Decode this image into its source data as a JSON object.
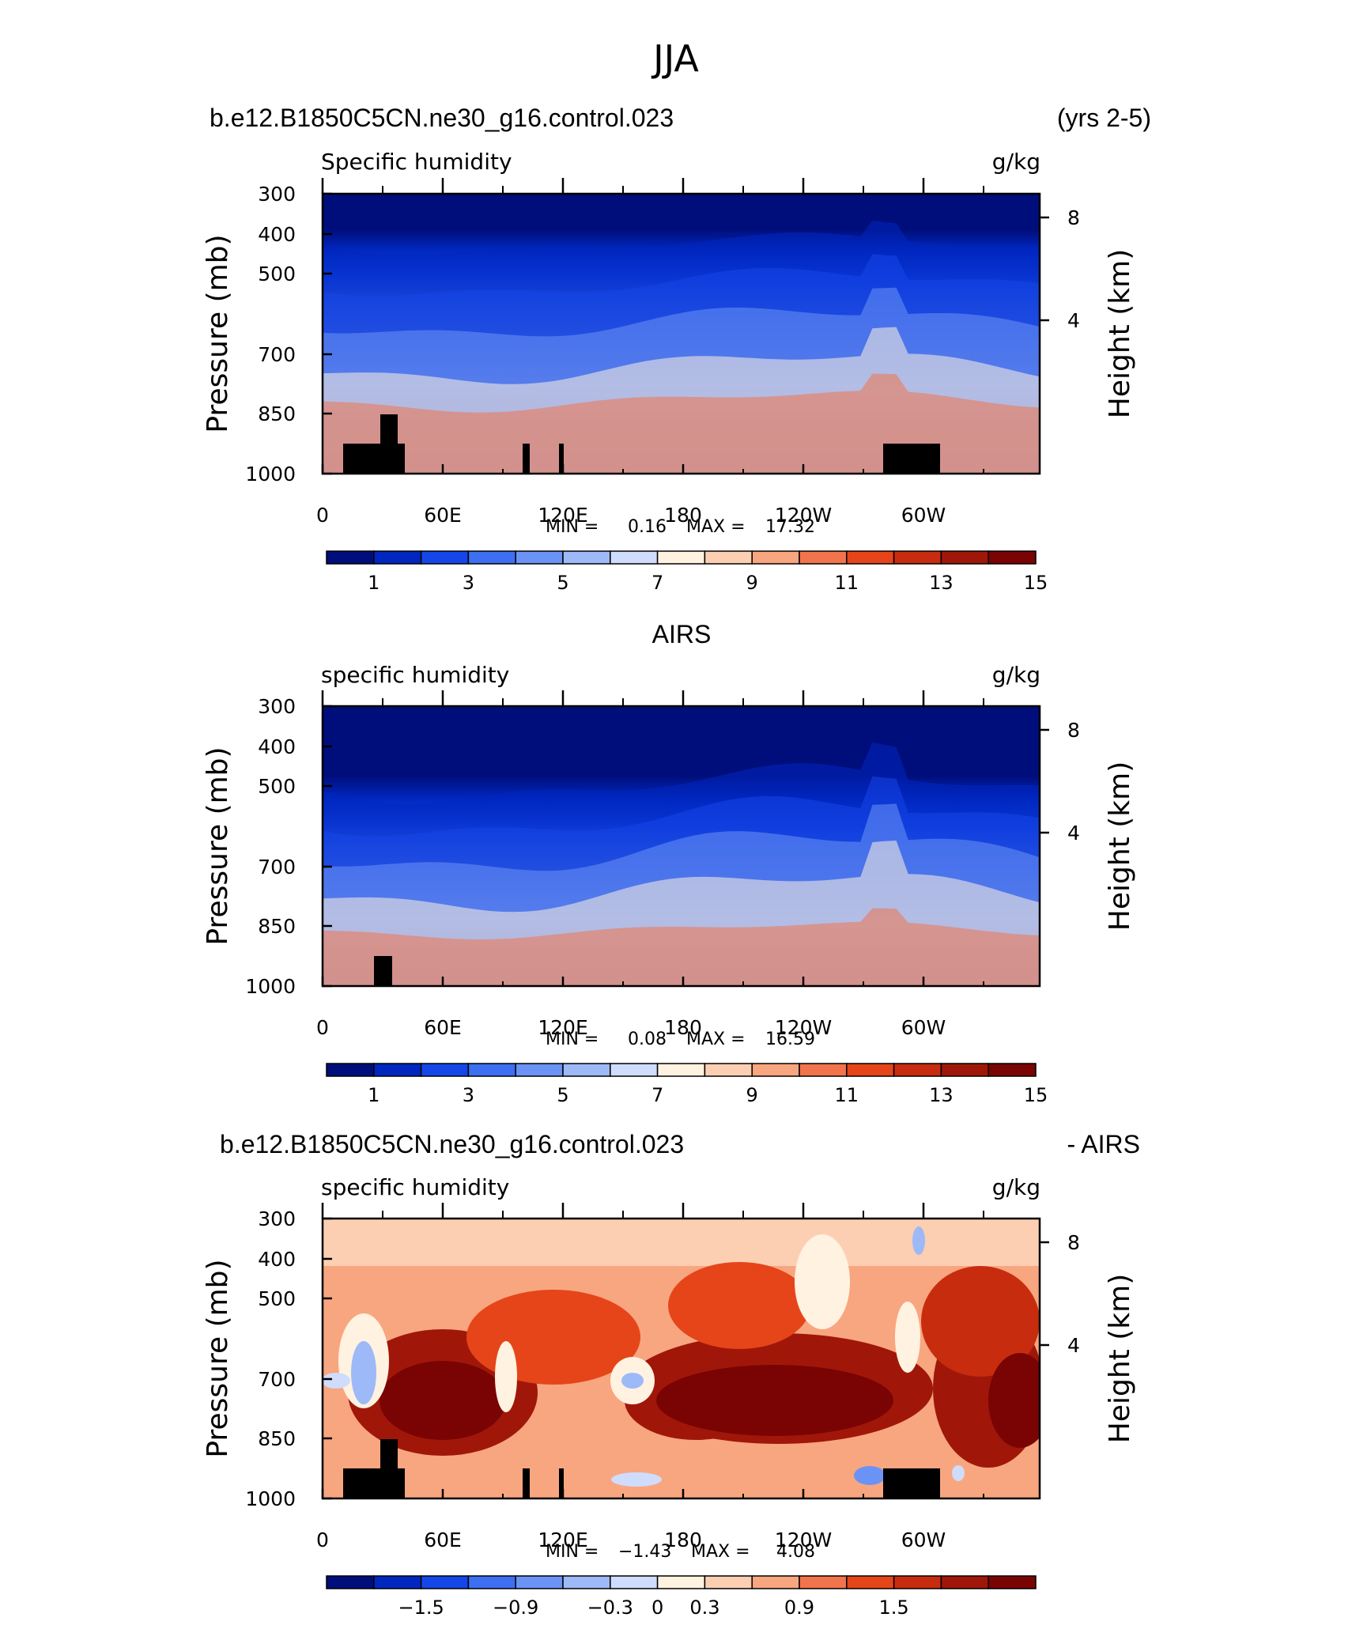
{
  "figure": {
    "title": "JJA"
  },
  "chart_data": [
    {
      "type": "heatmap",
      "label_left": "b.e12.B1850C5CN.ne30_g16.control.023",
      "label_right": "(yrs 2-5)",
      "variable": "Specific humidity",
      "units": "g/kg",
      "ylabel": "Pressure (mb)",
      "ylabel_right": "Height (km)",
      "x_ticks": [
        "0",
        "60E",
        "120E",
        "180",
        "120W",
        "60W"
      ],
      "y_ticks": [
        "300",
        "400",
        "500",
        "700",
        "850",
        "1000"
      ],
      "y_ticks_right": [
        "8",
        "4"
      ],
      "min_label": "MIN =",
      "min_value": "0.16",
      "max_label": "MAX =",
      "max_value": "17.32",
      "colorbar_labels": [
        "1",
        "3",
        "5",
        "7",
        "9",
        "11",
        "13",
        "15"
      ],
      "colorbar_colors": [
        "#000e7c",
        "#0027bf",
        "#1546e8",
        "#3d6ff2",
        "#6b93f5",
        "#9db9f8",
        "#cfdcfb",
        "#fff2e0",
        "#fccfb3",
        "#f8a680",
        "#f1744c",
        "#e64519",
        "#c82c0e",
        "#a0170a",
        "#7a0403"
      ],
      "xlim": [
        0,
        360
      ],
      "ylim": [
        1000,
        300
      ]
    },
    {
      "type": "heatmap",
      "label_center": "AIRS",
      "variable": "specific humidity",
      "units": "g/kg",
      "ylabel": "Pressure (mb)",
      "ylabel_right": "Height (km)",
      "x_ticks": [
        "0",
        "60E",
        "120E",
        "180",
        "120W",
        "60W"
      ],
      "y_ticks": [
        "300",
        "400",
        "500",
        "700",
        "850",
        "1000"
      ],
      "y_ticks_right": [
        "8",
        "4"
      ],
      "min_label": "MIN =",
      "min_value": "0.08",
      "max_label": "MAX =",
      "max_value": "16.59",
      "colorbar_labels": [
        "1",
        "3",
        "5",
        "7",
        "9",
        "11",
        "13",
        "15"
      ],
      "colorbar_colors": [
        "#000e7c",
        "#0027bf",
        "#1546e8",
        "#3d6ff2",
        "#6b93f5",
        "#9db9f8",
        "#cfdcfb",
        "#fff2e0",
        "#fccfb3",
        "#f8a680",
        "#f1744c",
        "#e64519",
        "#c82c0e",
        "#a0170a",
        "#7a0403"
      ],
      "xlim": [
        0,
        360
      ],
      "ylim": [
        1000,
        300
      ]
    },
    {
      "type": "heatmap",
      "label_left": "b.e12.B1850C5CN.ne30_g16.control.023",
      "label_right": "- AIRS",
      "variable": "specific humidity",
      "units": "g/kg",
      "ylabel": "Pressure (mb)",
      "ylabel_right": "Height (km)",
      "x_ticks": [
        "0",
        "60E",
        "120E",
        "180",
        "120W",
        "60W"
      ],
      "y_ticks": [
        "300",
        "400",
        "500",
        "700",
        "850",
        "1000"
      ],
      "y_ticks_right": [
        "8",
        "4"
      ],
      "min_label": "MIN =",
      "min_value": "−1.43",
      "max_label": "MAX =",
      "max_value": "4.08",
      "colorbar_labels": [
        "−1.5",
        "−0.9",
        "−0.3",
        "0",
        "0.3",
        "0.9",
        "1.5"
      ],
      "colorbar_colors": [
        "#000e7c",
        "#0027bf",
        "#1546e8",
        "#3d6ff2",
        "#6b93f5",
        "#9db9f8",
        "#cfdcfb",
        "#fff2e0",
        "#fccfb3",
        "#f8a680",
        "#f1744c",
        "#e64519",
        "#c82c0e",
        "#a0170a",
        "#7a0403"
      ],
      "xlim": [
        0,
        360
      ],
      "ylim": [
        1000,
        300
      ]
    }
  ]
}
